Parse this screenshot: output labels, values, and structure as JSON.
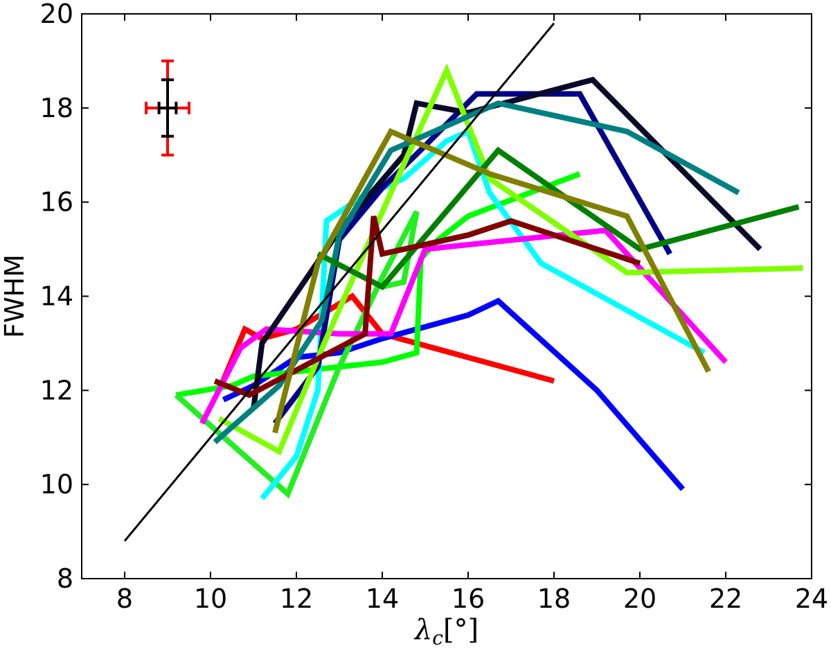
{
  "chart_data": {
    "type": "line",
    "title": "",
    "xlabel": {
      "symbol": "λ",
      "subscript": "c",
      "unit": "[°]"
    },
    "ylabel": "FWHM",
    "xlim": [
      7,
      24
    ],
    "ylim": [
      8,
      20
    ],
    "xticks": [
      "8",
      "10",
      "12",
      "14",
      "16",
      "18",
      "20",
      "22",
      "24"
    ],
    "yticks": [
      "8",
      "10",
      "12",
      "14",
      "16",
      "18",
      "20"
    ],
    "grid": false,
    "legend": "none",
    "fit_line": {
      "color": "#000000",
      "x": [
        8,
        18
      ],
      "y": [
        8.8,
        19.8
      ]
    },
    "error_bars": {
      "center": [
        9.0,
        18.0
      ],
      "bars": [
        {
          "color": "#ff0000",
          "x_err": 0.5,
          "y_err": 1.0
        },
        {
          "color": "#000000",
          "x_err": 0.2,
          "y_err": 0.6
        }
      ]
    },
    "series": [
      {
        "color": "#ff0000",
        "x": [
          10.2,
          10.8,
          11.2,
          12.0,
          13.3,
          14.0,
          16.0,
          18.0
        ],
        "y": [
          12.0,
          13.3,
          13.1,
          13.3,
          14.0,
          13.2,
          12.7,
          12.2
        ]
      },
      {
        "color": "#0000ff",
        "x": [
          10.3,
          11.0,
          12.0,
          13.0,
          14.0,
          16.0,
          16.7,
          19.0,
          21.0
        ],
        "y": [
          11.8,
          12.1,
          12.7,
          12.8,
          13.1,
          13.6,
          13.9,
          12.0,
          9.9
        ]
      },
      {
        "color": "#00ff00",
        "x": [
          9.2,
          10.5,
          11.0,
          14.0,
          14.8,
          14.9,
          15.3,
          16.0,
          18.6
        ],
        "y": [
          11.9,
          12.1,
          12.3,
          12.6,
          12.8,
          14.8,
          15.2,
          15.7,
          16.6
        ]
      },
      {
        "color": "#22ee22",
        "x": [
          9.2,
          11.8,
          13.0,
          14.0,
          14.8,
          14.5,
          14.0
        ],
        "y": [
          11.9,
          9.8,
          12.5,
          14.4,
          15.8,
          14.3,
          14.2
        ]
      },
      {
        "color": "#00ffff",
        "x": [
          11.2,
          12.0,
          12.5,
          12.7,
          13.5,
          14.5,
          15.5,
          16.0,
          16.5,
          17.7,
          21.5
        ],
        "y": [
          9.7,
          10.6,
          12.0,
          15.6,
          16.1,
          16.5,
          17.3,
          17.5,
          16.2,
          14.7,
          12.8
        ]
      },
      {
        "color": "#ff00ff",
        "x": [
          9.8,
          10.7,
          11.3,
          13.0,
          14.2,
          15.0,
          19.2,
          22.0
        ],
        "y": [
          11.3,
          12.9,
          13.3,
          13.2,
          13.2,
          15.0,
          15.4,
          12.6
        ]
      },
      {
        "color": "#000088",
        "x": [
          11.5,
          12.5,
          13.0,
          14.0,
          15.0,
          16.2,
          18.6,
          20.7
        ],
        "y": [
          11.3,
          12.5,
          15.2,
          16.3,
          17.2,
          18.3,
          18.3,
          14.9
        ]
      },
      {
        "color": "#0a0a28",
        "x": [
          11.0,
          11.2,
          13.0,
          14.5,
          14.8,
          16.0,
          18.9,
          22.8
        ],
        "y": [
          11.6,
          13.0,
          15.4,
          17.0,
          18.1,
          17.9,
          18.6,
          15.0
        ]
      },
      {
        "color": "#7fff00",
        "x": [
          10.2,
          11.6,
          12.6,
          14.2,
          15.5,
          16.5,
          19.7,
          23.8
        ],
        "y": [
          11.4,
          10.7,
          12.9,
          16.2,
          18.8,
          16.5,
          14.5,
          14.6
        ]
      },
      {
        "color": "#008080",
        "x": [
          10.1,
          11.6,
          12.6,
          13.0,
          14.2,
          16.7,
          19.7,
          22.3
        ],
        "y": [
          10.9,
          12.1,
          13.5,
          15.3,
          17.1,
          18.1,
          17.5,
          16.2
        ]
      },
      {
        "color": "#008000",
        "x": [
          12.5,
          14.0,
          16.7,
          20.0,
          23.7
        ],
        "y": [
          14.9,
          14.2,
          17.1,
          15.0,
          15.9
        ]
      },
      {
        "color": "#800000",
        "x": [
          10.1,
          10.9,
          13.6,
          13.8,
          14.0,
          16.0,
          17.0,
          20.0
        ],
        "y": [
          12.2,
          11.9,
          13.2,
          15.7,
          14.9,
          15.3,
          15.6,
          14.7
        ]
      },
      {
        "color": "#808000",
        "x": [
          11.5,
          12.5,
          14.2,
          16.5,
          19.7,
          21.6
        ],
        "y": [
          11.1,
          14.7,
          17.5,
          16.6,
          15.7,
          12.4
        ]
      }
    ]
  }
}
